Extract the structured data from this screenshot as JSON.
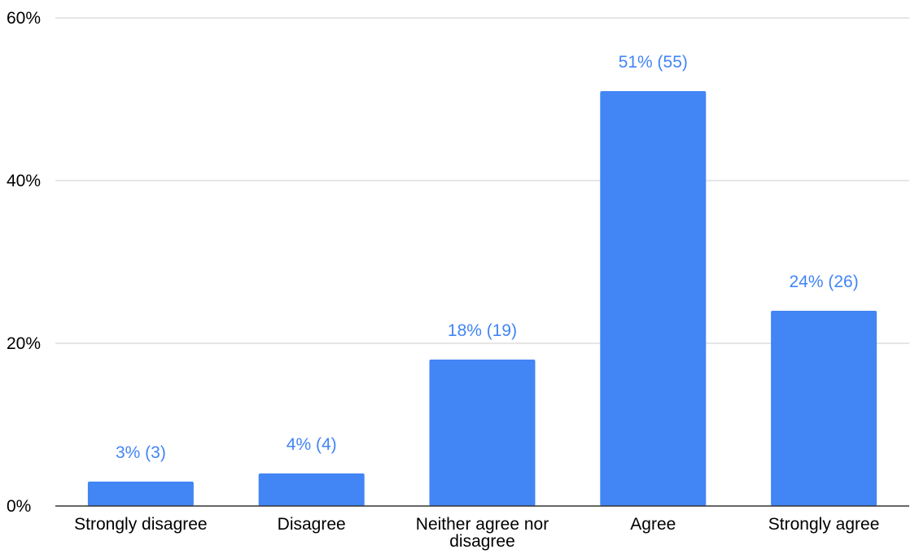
{
  "chart_data": {
    "type": "bar",
    "title": "",
    "xlabel": "",
    "ylabel": "",
    "categories": [
      [
        "Strongly disagree"
      ],
      [
        "Disagree"
      ],
      [
        "Neither agree nor",
        "disagree"
      ],
      [
        "Agree"
      ],
      [
        "Strongly agree"
      ]
    ],
    "values": [
      3,
      4,
      18,
      51,
      24
    ],
    "data_labels": [
      "3% (3)",
      "4% (4)",
      "18% (19)",
      "51% (55)",
      "24% (26)"
    ],
    "ylim": [
      0,
      60
    ],
    "yticks": [
      0,
      20,
      40,
      60
    ],
    "ytick_labels": [
      "0%",
      "20%",
      "40%",
      "60%"
    ],
    "grid": true,
    "legend": "none",
    "colors": {
      "bar": "#4285f4",
      "data_label": "#4285f4",
      "grid": "#cccccc",
      "axis": "#333333"
    }
  }
}
